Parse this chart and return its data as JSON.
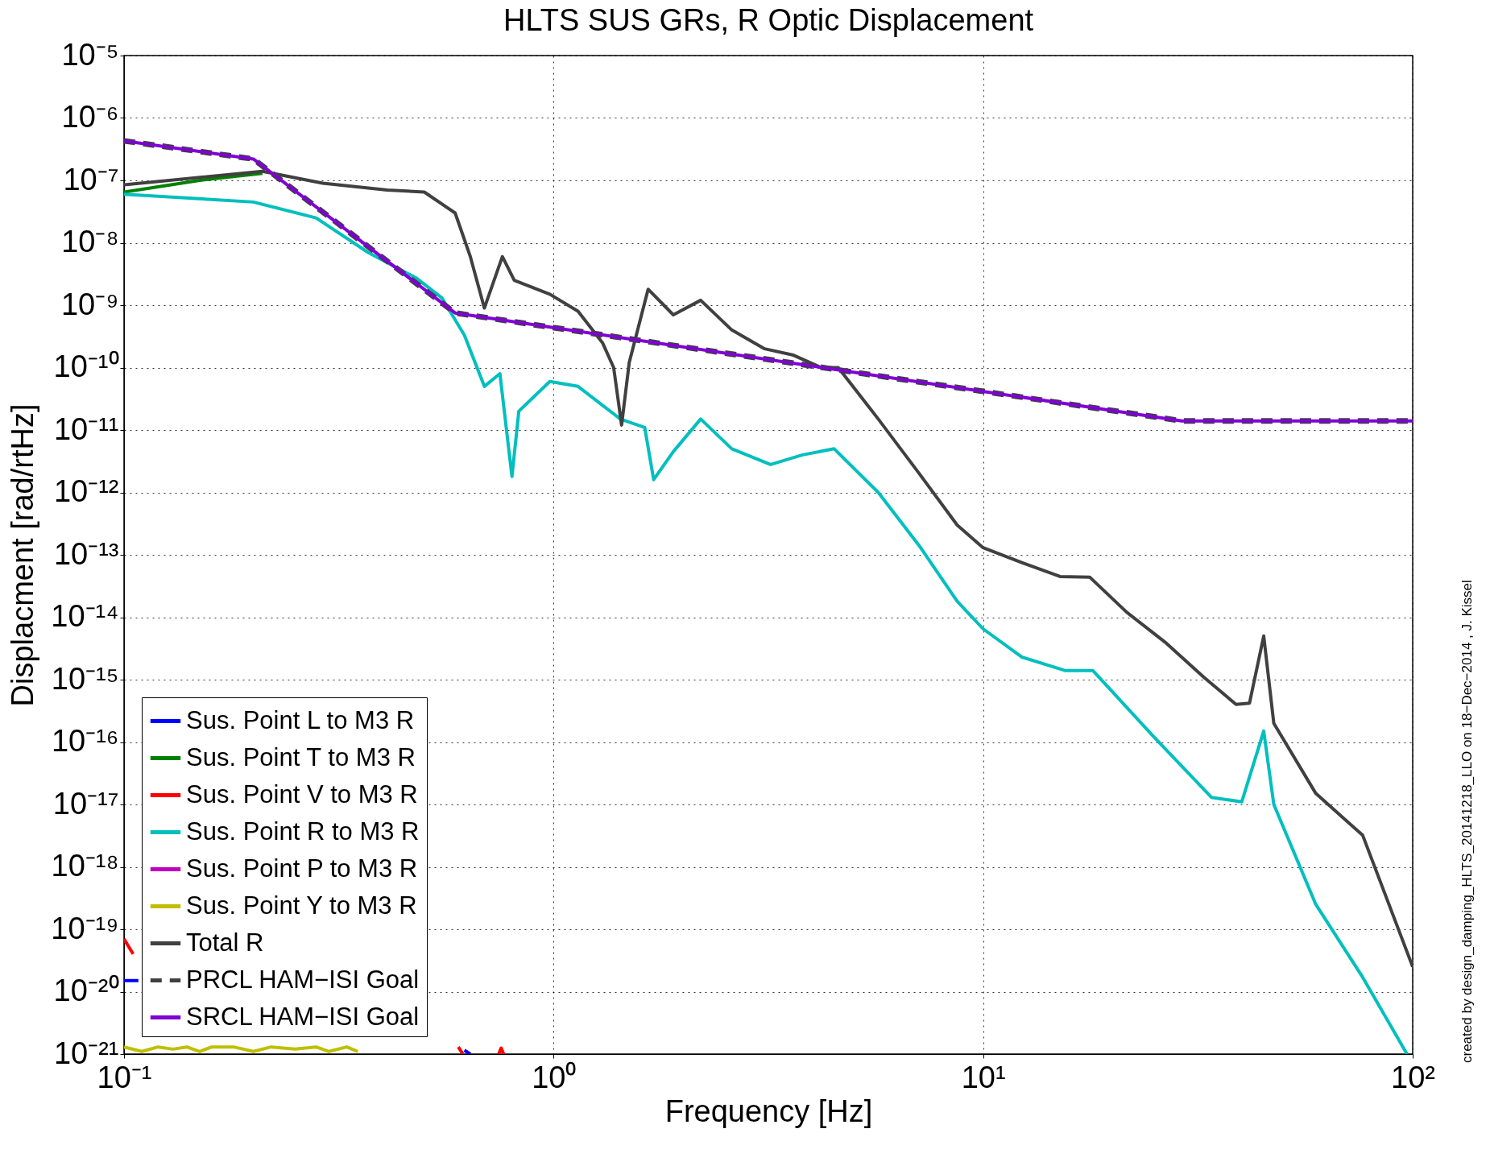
{
  "chart_data": {
    "type": "line",
    "title": "HLTS SUS GRs, R Optic Displacement",
    "xlabel": "Frequency [Hz]",
    "ylabel": "Displacment [rad/rtHz]",
    "log": "xy",
    "grid": true,
    "legend": "bottom left",
    "xlim": [
      0.1,
      100
    ],
    "xticks": [
      {
        "value": 0.1,
        "label": "10⁻¹"
      },
      {
        "value": 1,
        "label": "10⁰"
      },
      {
        "value": 10,
        "label": "10¹"
      },
      {
        "value": 100,
        "label": "10²"
      }
    ],
    "ylim": [
      1e-21,
      1e-05
    ],
    "yticks": [
      {
        "value": 1e-21,
        "label": "10⁻²¹"
      },
      {
        "value": 1e-20,
        "label": "10⁻²⁰"
      },
      {
        "value": 1e-19,
        "label": "10⁻¹⁹"
      },
      {
        "value": 1e-18,
        "label": "10⁻¹⁸"
      },
      {
        "value": 1e-17,
        "label": "10⁻¹⁷"
      },
      {
        "value": 1e-16,
        "label": "10⁻¹⁶"
      },
      {
        "value": 1e-15,
        "label": "10⁻¹⁵"
      },
      {
        "value": 1e-14,
        "label": "10⁻¹⁴"
      },
      {
        "value": 1e-13,
        "label": "10⁻¹³"
      },
      {
        "value": 1e-12,
        "label": "10⁻¹²"
      },
      {
        "value": 1e-11,
        "label": "10⁻¹¹"
      },
      {
        "value": 1e-10,
        "label": "10⁻¹⁰"
      },
      {
        "value": 1e-09,
        "label": "10⁻⁹"
      },
      {
        "value": 1e-08,
        "label": "10⁻⁸"
      },
      {
        "value": 1e-07,
        "label": "10⁻⁷"
      },
      {
        "value": 1e-06,
        "label": "10⁻⁶"
      },
      {
        "value": 1e-05,
        "label": "10⁻⁵"
      }
    ],
    "annotations": [
      "created by design_damping_HLTS_20141218_LLO on 18−Dec−2014 , J. Kissel"
    ],
    "series": [
      {
        "name": "Sus. Point L to M3 R",
        "color": "#0000ff",
        "line_style": "solid",
        "x": [
          0.1,
          0.108,
          0.3,
          0.62,
          0.64
        ],
        "values": [
          1.5e-20,
          1.5e-20,
          null,
          1.15e-21,
          1e-21
        ]
      },
      {
        "name": "Sus. Point T to M3 R",
        "color": "#008000",
        "line_style": "solid",
        "x": [
          0.1,
          0.15,
          0.21
        ],
        "values": [
          6.5e-08,
          1e-07,
          1.3e-07
        ]
      },
      {
        "name": "Sus. Point V to M3 R",
        "color": "#ff0000",
        "line_style": "solid",
        "x": [
          0.1,
          0.105,
          0.3,
          0.6,
          0.615,
          0.7,
          0.745,
          0.755,
          0.765
        ],
        "values": [
          7e-20,
          4e-20,
          null,
          1.3e-21,
          1e-21,
          null,
          1e-21,
          1.25e-21,
          1e-21
        ]
      },
      {
        "name": "Sus. Point R to M3 R",
        "color": "#00bfbf",
        "line_style": "solid",
        "x": [
          0.1,
          0.2,
          0.28,
          0.37,
          0.48,
          0.55,
          0.62,
          0.69,
          0.75,
          0.8,
          0.83,
          0.98,
          1.14,
          1.43,
          1.63,
          1.71,
          1.9,
          2.2,
          2.6,
          3.2,
          3.8,
          4.5,
          5.7,
          7.1,
          8.7,
          10,
          12.3,
          15.5,
          18,
          25,
          34,
          40,
          45,
          47.5,
          59.5,
          76.5,
          97
        ],
        "values": [
          6e-08,
          4.5e-08,
          2.5e-08,
          7e-09,
          2.7e-09,
          1.3e-09,
          3.3e-10,
          5e-11,
          8e-11,
          1.8e-12,
          2e-11,
          6e-11,
          5e-11,
          1.5e-11,
          1.1e-11,
          1.6e-12,
          4.5e-12,
          1.5e-11,
          5e-12,
          2.8e-12,
          4e-12,
          5e-12,
          1e-12,
          1.4e-13,
          1.8e-14,
          6.5e-15,
          2.3e-15,
          1.4e-15,
          1.4e-15,
          1.2e-16,
          1.3e-17,
          1.1e-17,
          1.5e-16,
          1e-17,
          2.5e-19,
          1.7e-20,
          1e-21
        ]
      },
      {
        "name": "Sus. Point P to M3 R",
        "color": "#bf00bf",
        "line_style": "solid"
      },
      {
        "name": "Sus. Point Y to M3 R",
        "color": "#bfbf00",
        "line_style": "solid",
        "x": [
          0.1,
          0.11,
          0.12,
          0.13,
          0.14,
          0.15,
          0.16,
          0.18,
          0.2,
          0.22,
          0.25,
          0.28,
          0.3,
          0.33,
          0.35
        ],
        "values": [
          1.3e-21,
          1.1e-21,
          1.3e-21,
          1.2e-21,
          1.3e-21,
          1.1e-21,
          1.3e-21,
          1.3e-21,
          1.1e-21,
          1.3e-21,
          1.2e-21,
          1.3e-21,
          1.1e-21,
          1.3e-21,
          1.1e-21
        ]
      },
      {
        "name": "Total R",
        "color": "#404040",
        "line_style": "solid",
        "x": [
          0.1,
          0.21,
          0.29,
          0.41,
          0.5,
          0.59,
          0.64,
          0.69,
          0.76,
          0.81,
          0.98,
          1.14,
          1.3,
          1.38,
          1.44,
          1.5,
          1.66,
          1.9,
          2.2,
          2.6,
          3.1,
          3.6,
          4.2,
          4.6,
          5.7,
          7.1,
          8.7,
          10,
          12.3,
          15.1,
          17.7,
          21.6,
          26.5,
          32.6,
          38.8,
          41.7,
          45,
          47.5,
          59.5,
          76.5,
          100
        ],
        "values": [
          8.5e-08,
          1.4e-07,
          9e-08,
          7e-08,
          6.5e-08,
          3e-08,
          6e-09,
          9e-10,
          6e-09,
          2.5e-09,
          1.5e-09,
          8e-10,
          2.5e-10,
          1e-10,
          1.2e-11,
          1.2e-10,
          1.8e-09,
          7e-10,
          1.2e-09,
          4e-10,
          2e-10,
          1.6e-10,
          1e-10,
          1e-10,
          1.5e-11,
          2e-12,
          3e-13,
          1.3e-13,
          7.5e-14,
          4.5e-14,
          4.4e-14,
          1.2e-14,
          4e-15,
          1.1e-15,
          4e-16,
          4.2e-16,
          5e-15,
          2e-16,
          1.5e-17,
          3.2e-18,
          2.5e-20
        ]
      },
      {
        "name": "PRCL HAM−ISI Goal",
        "color": "#404040",
        "line_style": "dashed",
        "x": [
          0.1,
          0.2,
          0.59,
          29,
          100
        ],
        "values": [
          4.3e-07,
          2.2e-07,
          7.5e-10,
          1.4e-11,
          1.4e-11
        ]
      },
      {
        "name": "SRCL HAM−ISI Goal",
        "color": "#7f00d4",
        "line_style": "solid",
        "x": [
          0.1,
          0.2,
          0.59,
          29,
          100
        ],
        "values": [
          4.3e-07,
          2.2e-07,
          7.5e-10,
          1.4e-11,
          1.4e-11
        ]
      }
    ]
  }
}
